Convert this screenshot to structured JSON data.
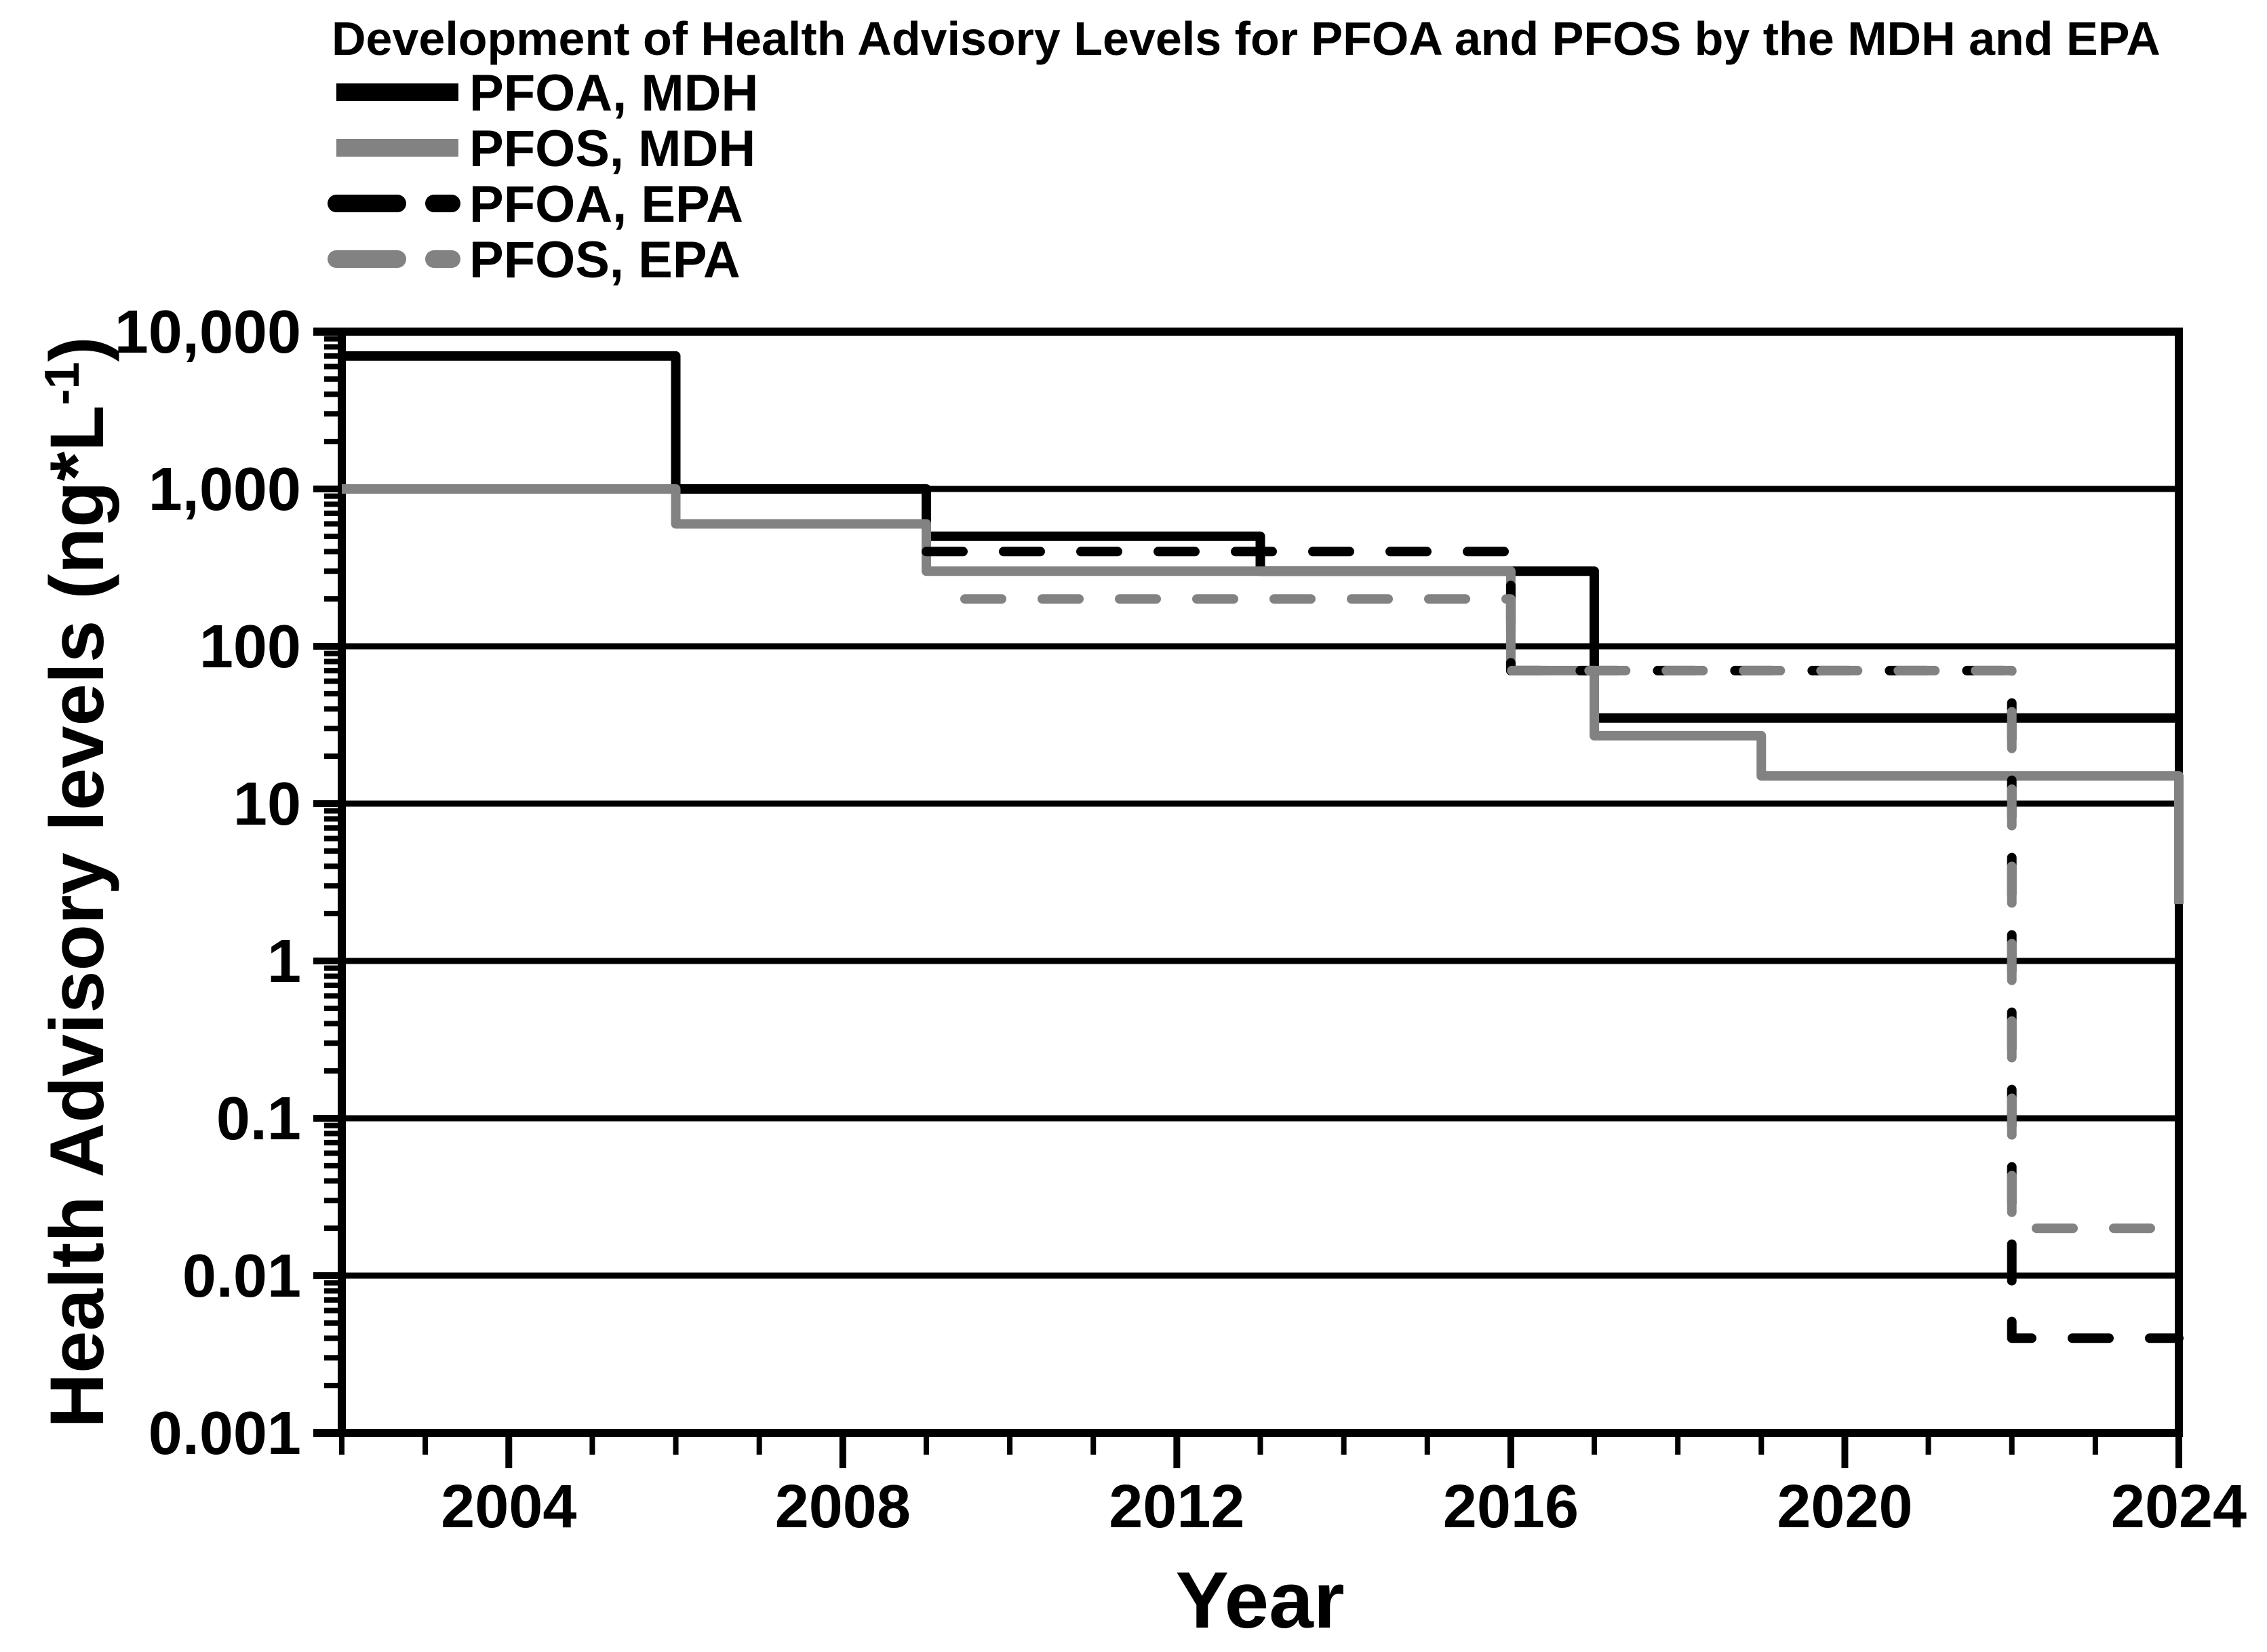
{
  "chart_data": {
    "type": "line",
    "step": true,
    "title": "Development of Health Advisory Levels for PFOA and PFOS by the MDH and EPA",
    "xlabel": "Year",
    "ylabel": {
      "prefix": "Health Advisory levels (ng*L",
      "superscript": "-1",
      "suffix": ")",
      "plain": "Health Advisory levels (ng*L^-1)"
    },
    "x_axis": {
      "min": 2002,
      "max": 2024,
      "major_ticks": [
        2004,
        2008,
        2012,
        2016,
        2020,
        2024
      ],
      "minor_tick_every_years": 1
    },
    "y_axis": {
      "scale": "log",
      "min": 0.001,
      "max": 10000,
      "unit": "ng*L^-1",
      "major_ticks": [
        {
          "label": "10,000",
          "value": 10000
        },
        {
          "label": "1,000",
          "value": 1000
        },
        {
          "label": "100",
          "value": 100
        },
        {
          "label": "10",
          "value": 10
        },
        {
          "label": "1",
          "value": 1
        },
        {
          "label": "0.1",
          "value": 0.1
        },
        {
          "label": "0.01",
          "value": 0.01
        },
        {
          "label": "0.001",
          "value": 0.001
        }
      ]
    },
    "grid": {
      "horizontal_decades": true,
      "vertical": false
    },
    "legend_position": "top-left",
    "series": [
      {
        "id": "pfoa-mdh",
        "name": "PFOA, MDH",
        "color": "#000000",
        "dash": "solid",
        "points": [
          [
            2002,
            7000
          ],
          [
            2006,
            7000
          ],
          [
            2006,
            1000
          ],
          [
            2009,
            1000
          ],
          [
            2009,
            500
          ],
          [
            2013,
            500
          ],
          [
            2013,
            300
          ],
          [
            2017,
            300
          ],
          [
            2017,
            35
          ],
          [
            2024,
            35
          ]
        ]
      },
      {
        "id": "pfos-mdh",
        "name": "PFOS, MDH",
        "color": "#828282",
        "dash": "solid",
        "points": [
          [
            2002,
            1000
          ],
          [
            2006,
            1000
          ],
          [
            2006,
            600
          ],
          [
            2009,
            600
          ],
          [
            2009,
            300
          ],
          [
            2016,
            300
          ],
          [
            2016,
            70
          ],
          [
            2017,
            70
          ],
          [
            2017,
            27
          ],
          [
            2019,
            27
          ],
          [
            2019,
            15
          ],
          [
            2024,
            15
          ],
          [
            2024,
            2.3
          ]
        ]
      },
      {
        "id": "pfoa-epa",
        "name": "PFOA, EPA",
        "color": "#000000",
        "dash": "dashed",
        "points": [
          [
            2009,
            400
          ],
          [
            2016,
            400
          ],
          [
            2016,
            70
          ],
          [
            2022,
            70
          ],
          [
            2022,
            0.004
          ],
          [
            2024,
            0.004
          ]
        ]
      },
      {
        "id": "pfos-epa",
        "name": "PFOS, EPA",
        "color": "#828282",
        "dash": "dashed",
        "points": [
          [
            2009,
            200
          ],
          [
            2016,
            200
          ],
          [
            2016,
            70
          ],
          [
            2022,
            70
          ],
          [
            2022,
            0.02
          ],
          [
            2024,
            0.02
          ]
        ]
      }
    ]
  },
  "colors": {
    "line_black": "#000000",
    "line_gray": "#828282",
    "axis": "#000000",
    "background": "#ffffff"
  }
}
